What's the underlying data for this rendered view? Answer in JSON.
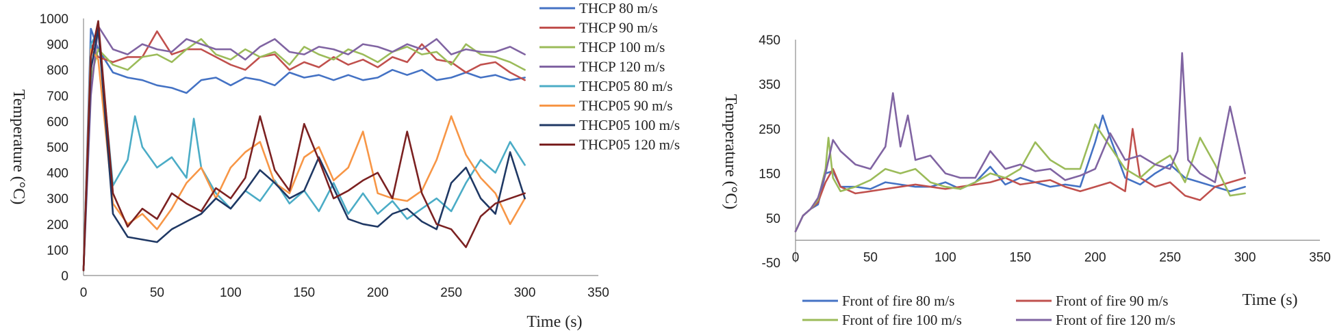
{
  "chart_data": [
    {
      "type": "line",
      "title": "",
      "xlabel": "Time (s)",
      "ylabel": "Temperature (°C)",
      "xlim": [
        0,
        350
      ],
      "ylim": [
        0,
        1000
      ],
      "xticks": [
        "0",
        "50",
        "100",
        "150",
        "200",
        "250",
        "300",
        "350"
      ],
      "yticks": [
        "0",
        "100",
        "200",
        "300",
        "400",
        "500",
        "600",
        "700",
        "800",
        "900",
        "1000"
      ],
      "legend_position": "right",
      "series": [
        {
          "name": "THCP 80 m/s",
          "color": "#4472c4",
          "x": [
            0,
            5,
            10,
            20,
            30,
            40,
            50,
            60,
            70,
            80,
            90,
            100,
            110,
            120,
            130,
            140,
            150,
            160,
            170,
            180,
            190,
            200,
            210,
            220,
            230,
            240,
            250,
            260,
            270,
            280,
            290,
            300
          ],
          "y": [
            20,
            960,
            880,
            790,
            770,
            760,
            740,
            730,
            710,
            760,
            770,
            740,
            770,
            760,
            740,
            790,
            770,
            780,
            760,
            780,
            760,
            770,
            800,
            780,
            800,
            760,
            770,
            790,
            770,
            780,
            760,
            770
          ]
        },
        {
          "name": "THCP 90 m/s",
          "color": "#c0504d",
          "x": [
            0,
            5,
            10,
            20,
            30,
            40,
            50,
            60,
            70,
            80,
            90,
            100,
            110,
            120,
            130,
            140,
            150,
            160,
            170,
            180,
            190,
            200,
            210,
            220,
            230,
            240,
            250,
            260,
            270,
            280,
            290,
            300
          ],
          "y": [
            20,
            900,
            850,
            830,
            850,
            850,
            950,
            860,
            880,
            880,
            850,
            820,
            800,
            850,
            860,
            800,
            830,
            810,
            850,
            820,
            840,
            810,
            850,
            830,
            900,
            840,
            830,
            790,
            820,
            830,
            790,
            760
          ]
        },
        {
          "name": "THCP 100 m/s",
          "color": "#9bbb59",
          "x": [
            0,
            5,
            10,
            20,
            30,
            40,
            50,
            60,
            70,
            80,
            90,
            100,
            110,
            120,
            130,
            140,
            150,
            160,
            170,
            180,
            190,
            200,
            210,
            220,
            230,
            240,
            250,
            260,
            270,
            280,
            290,
            300
          ],
          "y": [
            20,
            770,
            880,
            820,
            800,
            850,
            860,
            830,
            880,
            920,
            860,
            840,
            880,
            850,
            870,
            820,
            890,
            860,
            840,
            880,
            860,
            830,
            870,
            890,
            860,
            870,
            820,
            900,
            860,
            850,
            830,
            800
          ]
        },
        {
          "name": "THCP 120 m/s",
          "color": "#8064a2",
          "x": [
            0,
            5,
            10,
            20,
            30,
            40,
            50,
            60,
            70,
            80,
            90,
            100,
            110,
            120,
            130,
            140,
            150,
            160,
            170,
            180,
            190,
            200,
            210,
            220,
            230,
            240,
            250,
            260,
            270,
            280,
            290,
            300
          ],
          "y": [
            20,
            700,
            970,
            880,
            860,
            900,
            880,
            870,
            920,
            900,
            880,
            880,
            840,
            890,
            920,
            870,
            860,
            890,
            880,
            860,
            900,
            890,
            870,
            900,
            880,
            920,
            860,
            880,
            870,
            870,
            890,
            860
          ]
        },
        {
          "name": "THCP05 80 m/s",
          "color": "#4bacc6",
          "x": [
            0,
            5,
            10,
            20,
            30,
            35,
            40,
            50,
            60,
            70,
            75,
            80,
            90,
            100,
            110,
            120,
            130,
            140,
            150,
            160,
            170,
            180,
            190,
            200,
            210,
            220,
            230,
            240,
            250,
            260,
            270,
            280,
            290,
            300
          ],
          "y": [
            20,
            900,
            950,
            350,
            450,
            620,
            500,
            420,
            460,
            380,
            610,
            420,
            320,
            260,
            330,
            290,
            370,
            280,
            330,
            250,
            360,
            240,
            320,
            240,
            290,
            220,
            260,
            300,
            250,
            360,
            450,
            400,
            520,
            430
          ]
        },
        {
          "name": "THCP05 90 m/s",
          "color": "#f79646",
          "x": [
            0,
            5,
            10,
            20,
            30,
            40,
            50,
            60,
            70,
            80,
            90,
            100,
            110,
            120,
            130,
            140,
            150,
            160,
            170,
            180,
            190,
            200,
            210,
            220,
            230,
            240,
            250,
            260,
            270,
            280,
            290,
            300
          ],
          "y": [
            20,
            880,
            840,
            280,
            200,
            240,
            180,
            260,
            360,
            420,
            300,
            420,
            480,
            520,
            360,
            320,
            460,
            500,
            370,
            420,
            560,
            320,
            300,
            290,
            330,
            450,
            620,
            470,
            380,
            320,
            200,
            300
          ]
        },
        {
          "name": "THCP05 100 m/s",
          "color": "#1f3864",
          "x": [
            0,
            5,
            10,
            20,
            30,
            40,
            50,
            60,
            70,
            80,
            90,
            100,
            110,
            120,
            130,
            140,
            150,
            160,
            170,
            180,
            190,
            200,
            210,
            220,
            230,
            240,
            250,
            260,
            270,
            280,
            290,
            300
          ],
          "y": [
            20,
            800,
            960,
            240,
            150,
            140,
            130,
            180,
            210,
            240,
            300,
            260,
            330,
            410,
            360,
            300,
            330,
            460,
            340,
            220,
            200,
            190,
            240,
            260,
            210,
            180,
            360,
            420,
            300,
            240,
            480,
            300
          ]
        },
        {
          "name": "THCP05 120 m/s",
          "color": "#7b2121",
          "x": [
            0,
            5,
            10,
            20,
            30,
            40,
            50,
            60,
            70,
            80,
            90,
            100,
            110,
            120,
            130,
            140,
            150,
            160,
            170,
            180,
            190,
            200,
            210,
            220,
            230,
            240,
            250,
            260,
            270,
            280,
            290,
            300
          ],
          "y": [
            20,
            850,
            990,
            320,
            190,
            260,
            220,
            320,
            280,
            250,
            340,
            300,
            380,
            620,
            410,
            330,
            590,
            450,
            300,
            330,
            370,
            400,
            300,
            560,
            320,
            200,
            180,
            110,
            230,
            280,
            300,
            320
          ]
        }
      ]
    },
    {
      "type": "line",
      "title": "",
      "xlabel": "Time (s)",
      "ylabel": "Temperature (°C)",
      "xlim": [
        0,
        350
      ],
      "ylim": [
        -50,
        450
      ],
      "xticks": [
        "0",
        "50",
        "100",
        "150",
        "200",
        "250",
        "300",
        "350"
      ],
      "yticks": [
        "-50",
        "50",
        "150",
        "250",
        "350",
        "450"
      ],
      "legend_position": "bottom",
      "series": [
        {
          "name": "Front of fire 80 m/s",
          "color": "#4472c4",
          "x": [
            0,
            5,
            10,
            15,
            20,
            25,
            30,
            40,
            50,
            60,
            70,
            80,
            90,
            100,
            110,
            120,
            130,
            140,
            150,
            160,
            170,
            180,
            190,
            200,
            205,
            210,
            220,
            230,
            240,
            250,
            260,
            270,
            280,
            290,
            300
          ],
          "y": [
            20,
            55,
            70,
            80,
            150,
            155,
            120,
            120,
            115,
            130,
            125,
            120,
            120,
            130,
            115,
            130,
            165,
            125,
            140,
            130,
            120,
            125,
            120,
            220,
            280,
            230,
            140,
            125,
            150,
            170,
            140,
            130,
            120,
            110,
            120
          ]
        },
        {
          "name": "Front of fire 90 m/s",
          "color": "#c0504d",
          "x": [
            0,
            5,
            10,
            15,
            20,
            25,
            30,
            40,
            50,
            60,
            70,
            80,
            90,
            100,
            110,
            120,
            130,
            140,
            150,
            160,
            170,
            180,
            190,
            200,
            210,
            220,
            225,
            230,
            240,
            250,
            260,
            270,
            280,
            290,
            300
          ],
          "y": [
            20,
            55,
            70,
            85,
            130,
            160,
            120,
            105,
            110,
            115,
            120,
            125,
            120,
            115,
            120,
            125,
            130,
            140,
            125,
            130,
            135,
            120,
            110,
            120,
            130,
            110,
            250,
            140,
            120,
            130,
            100,
            90,
            120,
            130,
            140
          ]
        },
        {
          "name": "Front of fire 100 m/s",
          "color": "#9bbb59",
          "x": [
            0,
            5,
            10,
            15,
            20,
            22,
            25,
            30,
            40,
            50,
            60,
            70,
            80,
            90,
            100,
            110,
            120,
            130,
            140,
            150,
            160,
            170,
            180,
            190,
            200,
            210,
            220,
            230,
            240,
            250,
            260,
            270,
            280,
            290,
            300
          ],
          "y": [
            20,
            55,
            70,
            90,
            160,
            230,
            140,
            110,
            120,
            135,
            160,
            150,
            160,
            130,
            120,
            115,
            130,
            150,
            140,
            160,
            220,
            180,
            160,
            160,
            260,
            210,
            160,
            140,
            170,
            190,
            130,
            230,
            170,
            100,
            105
          ]
        },
        {
          "name": "Front of fire 120 m/s",
          "color": "#8064a2",
          "x": [
            0,
            5,
            10,
            15,
            20,
            25,
            30,
            40,
            50,
            60,
            65,
            70,
            75,
            80,
            90,
            100,
            110,
            120,
            130,
            140,
            150,
            160,
            170,
            180,
            190,
            200,
            210,
            220,
            230,
            240,
            250,
            255,
            258,
            262,
            270,
            280,
            290,
            300
          ],
          "y": [
            20,
            55,
            70,
            95,
            150,
            225,
            200,
            170,
            160,
            210,
            330,
            210,
            280,
            180,
            190,
            150,
            140,
            140,
            200,
            160,
            170,
            155,
            160,
            135,
            145,
            160,
            240,
            180,
            190,
            170,
            160,
            200,
            420,
            180,
            150,
            130,
            300,
            150
          ]
        }
      ]
    }
  ]
}
